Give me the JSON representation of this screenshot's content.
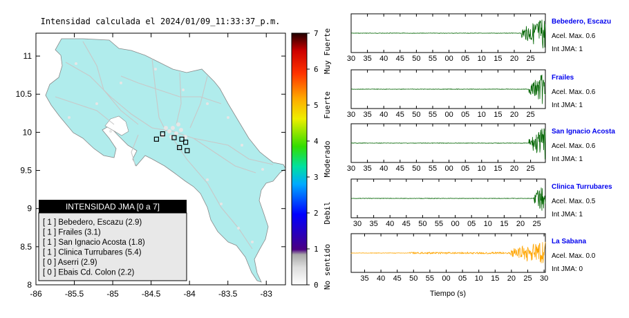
{
  "map": {
    "title": "Intensidad calculada el 2024/01/09_11:33:37_p.m.",
    "x_ticks": [
      "-86",
      "-85.5",
      "-85",
      "-84.5",
      "-84",
      "-83.5",
      "-83"
    ],
    "y_ticks": [
      "11",
      "10.5",
      "10",
      "9.5",
      "9",
      "8.5",
      "8"
    ],
    "xlim": [
      -86,
      -82.75
    ],
    "ylim": [
      8,
      11.3
    ],
    "land_color": "#b0ecec",
    "stations": [
      {
        "lon": -84.43,
        "lat": 9.91
      },
      {
        "lon": -84.35,
        "lat": 9.98
      },
      {
        "lon": -84.2,
        "lat": 9.93
      },
      {
        "lon": -84.1,
        "lat": 9.91
      },
      {
        "lon": -84.05,
        "lat": 9.87
      },
      {
        "lon": -84.13,
        "lat": 9.8
      },
      {
        "lon": -84.03,
        "lat": 9.76
      }
    ]
  },
  "colorbar": {
    "tick_labels": [
      "0",
      "1",
      "2",
      "3",
      "4",
      "5",
      "6",
      "7"
    ],
    "categories": [
      "No sentido",
      "Debil",
      "Moderado",
      "Fuerte",
      "Muy Fuerte"
    ],
    "range": [
      0,
      7
    ]
  },
  "legend": {
    "header": "INTENSIDAD JMA [0 a 7]",
    "entries": [
      "[ 1 ]  Bebedero, Escazu (2.9)",
      "[ 1 ]  Frailes (3.1)",
      "[ 1 ]  San Ignacio Acosta (1.8)",
      "[ 1 ]  Clinica Turrubares (5.4)",
      "[ 0 ]  Aserri (2.9)",
      "[ 0 ]  Ebais Cd. Colon (2.2)"
    ]
  },
  "chart_data": {
    "type": "line",
    "xlabel": "Tiempo (s)",
    "tick_labels_default": [
      "30",
      "35",
      "40",
      "45",
      "50",
      "55",
      "00",
      "05",
      "10",
      "15",
      "20",
      "25"
    ],
    "tick_labels_last": [
      "35",
      "40",
      "45",
      "50",
      "55",
      "00",
      "05",
      "10",
      "15",
      "20",
      "25",
      "30"
    ],
    "panels": [
      {
        "name": "Bebedero, Escazu",
        "accel": "Acel. Max. 0.6",
        "int": "Int JMA: 1",
        "color": "#006400",
        "onset": 0.875,
        "end": 1.0
      },
      {
        "name": "Frailes",
        "accel": "Acel. Max. 0.6",
        "int": "Int JMA: 1",
        "color": "#006400",
        "onset": 0.915,
        "end": 1.0
      },
      {
        "name": "San Ignacio Acosta",
        "accel": "Acel. Max. 0.6",
        "int": "Int JMA: 1",
        "color": "#006400",
        "onset": 0.915,
        "end": 1.0
      },
      {
        "name": "Clinica Turrubares",
        "accel": "Acel. Max. 0.5",
        "int": "Int JMA: 1",
        "color": "#006400",
        "onset": 0.94,
        "end": 1.0
      },
      {
        "name": "La Sabana",
        "accel": "Acel. Max. 0.0",
        "int": "Int JMA: 0",
        "color": "#ffa500",
        "onset": 0.82,
        "end": 1.0
      }
    ]
  }
}
